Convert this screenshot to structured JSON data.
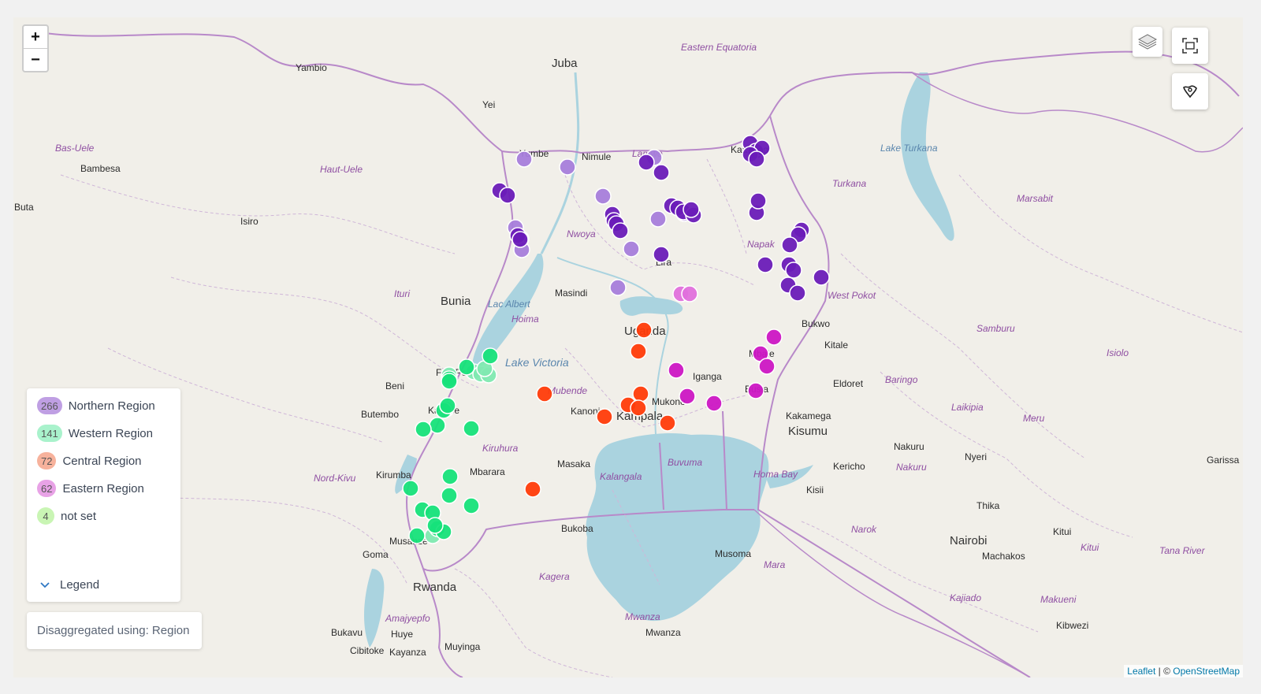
{
  "map": {
    "zoom_in_label": "+",
    "zoom_out_label": "−",
    "places": [
      {
        "name": "Juba",
        "cls": "big"
      },
      {
        "name": "Yambio",
        "cls": ""
      },
      {
        "name": "Yei",
        "cls": ""
      },
      {
        "name": "Yumbe",
        "cls": ""
      },
      {
        "name": "Nimule",
        "cls": ""
      },
      {
        "name": "Bambesa",
        "cls": ""
      },
      {
        "name": "Buta",
        "cls": ""
      },
      {
        "name": "Isiro",
        "cls": ""
      },
      {
        "name": "Bunia",
        "cls": "big"
      },
      {
        "name": "Masindi",
        "cls": ""
      },
      {
        "name": "Beni",
        "cls": ""
      },
      {
        "name": "Butembo",
        "cls": ""
      },
      {
        "name": "Kirumba",
        "cls": ""
      },
      {
        "name": "Mbarara",
        "cls": ""
      },
      {
        "name": "Masaka",
        "cls": ""
      },
      {
        "name": "Kanoni",
        "cls": ""
      },
      {
        "name": "Kampala",
        "cls": "big"
      },
      {
        "name": "Mukono",
        "cls": ""
      },
      {
        "name": "Iganga",
        "cls": ""
      },
      {
        "name": "Busia",
        "cls": ""
      },
      {
        "name": "Mbale",
        "cls": ""
      },
      {
        "name": "Bukwo",
        "cls": ""
      },
      {
        "name": "Kitale",
        "cls": ""
      },
      {
        "name": "Eldoret",
        "cls": ""
      },
      {
        "name": "Kakamega",
        "cls": ""
      },
      {
        "name": "Kisumu",
        "cls": "big"
      },
      {
        "name": "Kericho",
        "cls": ""
      },
      {
        "name": "Kisii",
        "cls": ""
      },
      {
        "name": "Nakuru",
        "cls": ""
      },
      {
        "name": "Nyeri",
        "cls": ""
      },
      {
        "name": "Thika",
        "cls": ""
      },
      {
        "name": "Nairobi",
        "cls": "big"
      },
      {
        "name": "Machakos",
        "cls": ""
      },
      {
        "name": "Kitui",
        "cls": ""
      },
      {
        "name": "Kibwezi",
        "cls": ""
      },
      {
        "name": "Garissa",
        "cls": ""
      },
      {
        "name": "Bukoba",
        "cls": ""
      },
      {
        "name": "Musoma",
        "cls": ""
      },
      {
        "name": "Mwanza",
        "cls": ""
      },
      {
        "name": "Goma",
        "cls": ""
      },
      {
        "name": "Musanze",
        "cls": ""
      },
      {
        "name": "Rwanda",
        "cls": "big"
      },
      {
        "name": "Bukavu",
        "cls": ""
      },
      {
        "name": "Huye",
        "cls": ""
      },
      {
        "name": "Muyinga",
        "cls": ""
      },
      {
        "name": "Cibitoke",
        "cls": ""
      },
      {
        "name": "Kayanza",
        "cls": ""
      },
      {
        "name": "Lira",
        "cls": ""
      },
      {
        "name": "Kaabong",
        "cls": ""
      },
      {
        "name": "Lamwo",
        "cls": "region"
      },
      {
        "name": "Uganda",
        "cls": "big"
      },
      {
        "name": "Fort Portal",
        "cls": ""
      },
      {
        "name": "Kasese",
        "cls": ""
      },
      {
        "name": "Eastern Equatoria",
        "cls": "region"
      },
      {
        "name": "Bas-Uele",
        "cls": "region"
      },
      {
        "name": "Haut-Uele",
        "cls": "region"
      },
      {
        "name": "Ituri",
        "cls": "region"
      },
      {
        "name": "Nord-Kivu",
        "cls": "region"
      },
      {
        "name": "Hoima",
        "cls": "region"
      },
      {
        "name": "Mubende",
        "cls": "region"
      },
      {
        "name": "Kiruhura",
        "cls": "region"
      },
      {
        "name": "Kalangala",
        "cls": "region"
      },
      {
        "name": "Buvuma",
        "cls": "region"
      },
      {
        "name": "Kagera",
        "cls": "region"
      },
      {
        "name": "Mwanza",
        "cls": "region"
      },
      {
        "name": "Mara",
        "cls": "region"
      },
      {
        "name": "Narok",
        "cls": "region"
      },
      {
        "name": "Nakuru",
        "cls": "region"
      },
      {
        "name": "Kajiado",
        "cls": "region"
      },
      {
        "name": "Makueni",
        "cls": "region"
      },
      {
        "name": "Kitui",
        "cls": "region"
      },
      {
        "name": "Tana River",
        "cls": "region"
      },
      {
        "name": "Meru",
        "cls": "region"
      },
      {
        "name": "Isiolo",
        "cls": "region"
      },
      {
        "name": "Laikipia",
        "cls": "region"
      },
      {
        "name": "Baringo",
        "cls": "region"
      },
      {
        "name": "Samburu",
        "cls": "region"
      },
      {
        "name": "Marsabit",
        "cls": "region"
      },
      {
        "name": "Turkana",
        "cls": "region"
      },
      {
        "name": "West Pokot",
        "cls": "region"
      },
      {
        "name": "Napak",
        "cls": "region"
      },
      {
        "name": "Nwoya",
        "cls": "region"
      },
      {
        "name": "Amajyepfo",
        "cls": "region"
      },
      {
        "name": "Homa Bay",
        "cls": "region"
      },
      {
        "name": "Lake Turkana",
        "cls": "water"
      },
      {
        "name": "Lac Albert",
        "cls": "water"
      },
      {
        "name": "Lake Victoria",
        "cls": "water big"
      }
    ],
    "colors": {
      "northern": "#6a1bb8",
      "northern_light": "#a67ddb",
      "western": "#16e27a",
      "western_light": "#7fe9b1",
      "central": "#ff3b0a",
      "eastern": "#cc16c4",
      "eastern_light": "#e070dc",
      "boundary": "#b889c9",
      "water": "#aad3df",
      "land": "#f1efe9"
    },
    "markers": {
      "northern": [],
      "western": [],
      "central": [],
      "eastern": []
    }
  },
  "controls": {
    "layers_icon": "layers-icon",
    "fullscreen_icon": "fullscreen-icon",
    "boundary_icon": "boundary-pin-icon"
  },
  "legend": {
    "items": [
      {
        "count": "266",
        "label": "Northern Region",
        "color": "#bf9fe3"
      },
      {
        "count": "141",
        "label": "Western Region",
        "color": "#a9f2cc"
      },
      {
        "count": "72",
        "label": "Central Region",
        "color": "#f7b29c"
      },
      {
        "count": "62",
        "label": "Eastern Region",
        "color": "#e8a2e6"
      },
      {
        "count": "4",
        "label": "not set",
        "color": "#c9f5b4"
      }
    ],
    "toggle_label": "Legend"
  },
  "disaggregation": {
    "text": "Disaggregated using: Region"
  },
  "attribution": {
    "leaflet": "Leaflet",
    "separator": " | © ",
    "osm": "OpenStreetMap"
  }
}
